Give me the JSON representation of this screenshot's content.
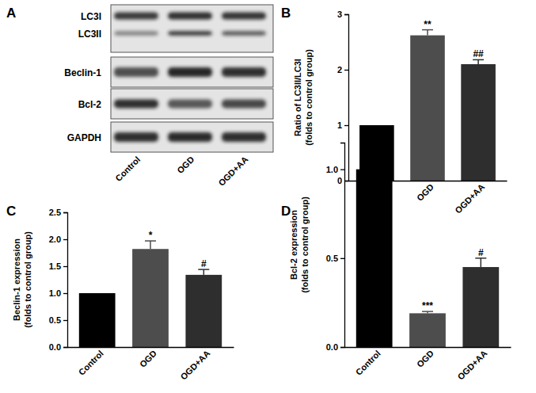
{
  "blot": {
    "panel_label": "A",
    "rows": [
      "LC3I",
      "LC3II",
      "Beclin-1",
      "Bcl-2",
      "GAPDH"
    ],
    "lanes": [
      "Control",
      "OGD",
      "OGD+AA"
    ]
  },
  "chart_data": [
    {
      "type": "bar",
      "title": "B",
      "ylabel": [
        "Ratio of LC3II/LC3I",
        "(folds to control group)"
      ],
      "categories": [
        "Control",
        "OGD",
        "OGD+AA"
      ],
      "values": [
        1.0,
        2.62,
        2.1
      ],
      "errors": [
        null,
        0.1,
        0.08
      ],
      "annotations": [
        null,
        "**",
        "##"
      ],
      "colors": [
        "#000000",
        "#4d4d4d",
        "#2e2e2e"
      ],
      "ylim": [
        0,
        3
      ],
      "yticks": [
        0,
        1,
        2,
        3
      ],
      "grid": false
    },
    {
      "type": "bar",
      "title": "C",
      "ylabel": [
        "Beclin-1 expression",
        "(folds to control group)"
      ],
      "categories": [
        "Control",
        "OGD",
        "OGD+AA"
      ],
      "values": [
        1.0,
        1.82,
        1.34
      ],
      "errors": [
        null,
        0.15,
        0.1
      ],
      "annotations": [
        null,
        "*",
        "#"
      ],
      "colors": [
        "#000000",
        "#4d4d4d",
        "#2e2e2e"
      ],
      "ylim": [
        0,
        2.5
      ],
      "yticks": [
        {
          "value": 0,
          "label": "0.0"
        },
        0.5,
        {
          "value": 1,
          "label": "1.0"
        },
        1.5,
        {
          "value": 2,
          "label": "2.0"
        },
        2.5
      ],
      "grid": false
    },
    {
      "type": "bar",
      "title": "D",
      "ylabel": [
        "Bcl-2 expression",
        "(folds to control group)"
      ],
      "categories": [
        "Control",
        "OGD",
        "OGD+AA"
      ],
      "values": [
        1.0,
        0.19,
        0.45
      ],
      "errors": [
        null,
        0.01,
        0.05
      ],
      "annotations": [
        null,
        "***",
        "#"
      ],
      "colors": [
        "#000000",
        "#4d4d4d",
        "#2e2e2e"
      ],
      "ylim": [
        0,
        1.15
      ],
      "yticks": [
        {
          "value": 0,
          "label": "0.0"
        },
        0.5,
        {
          "value": 1,
          "label": "1.0"
        }
      ],
      "grid": false
    }
  ]
}
